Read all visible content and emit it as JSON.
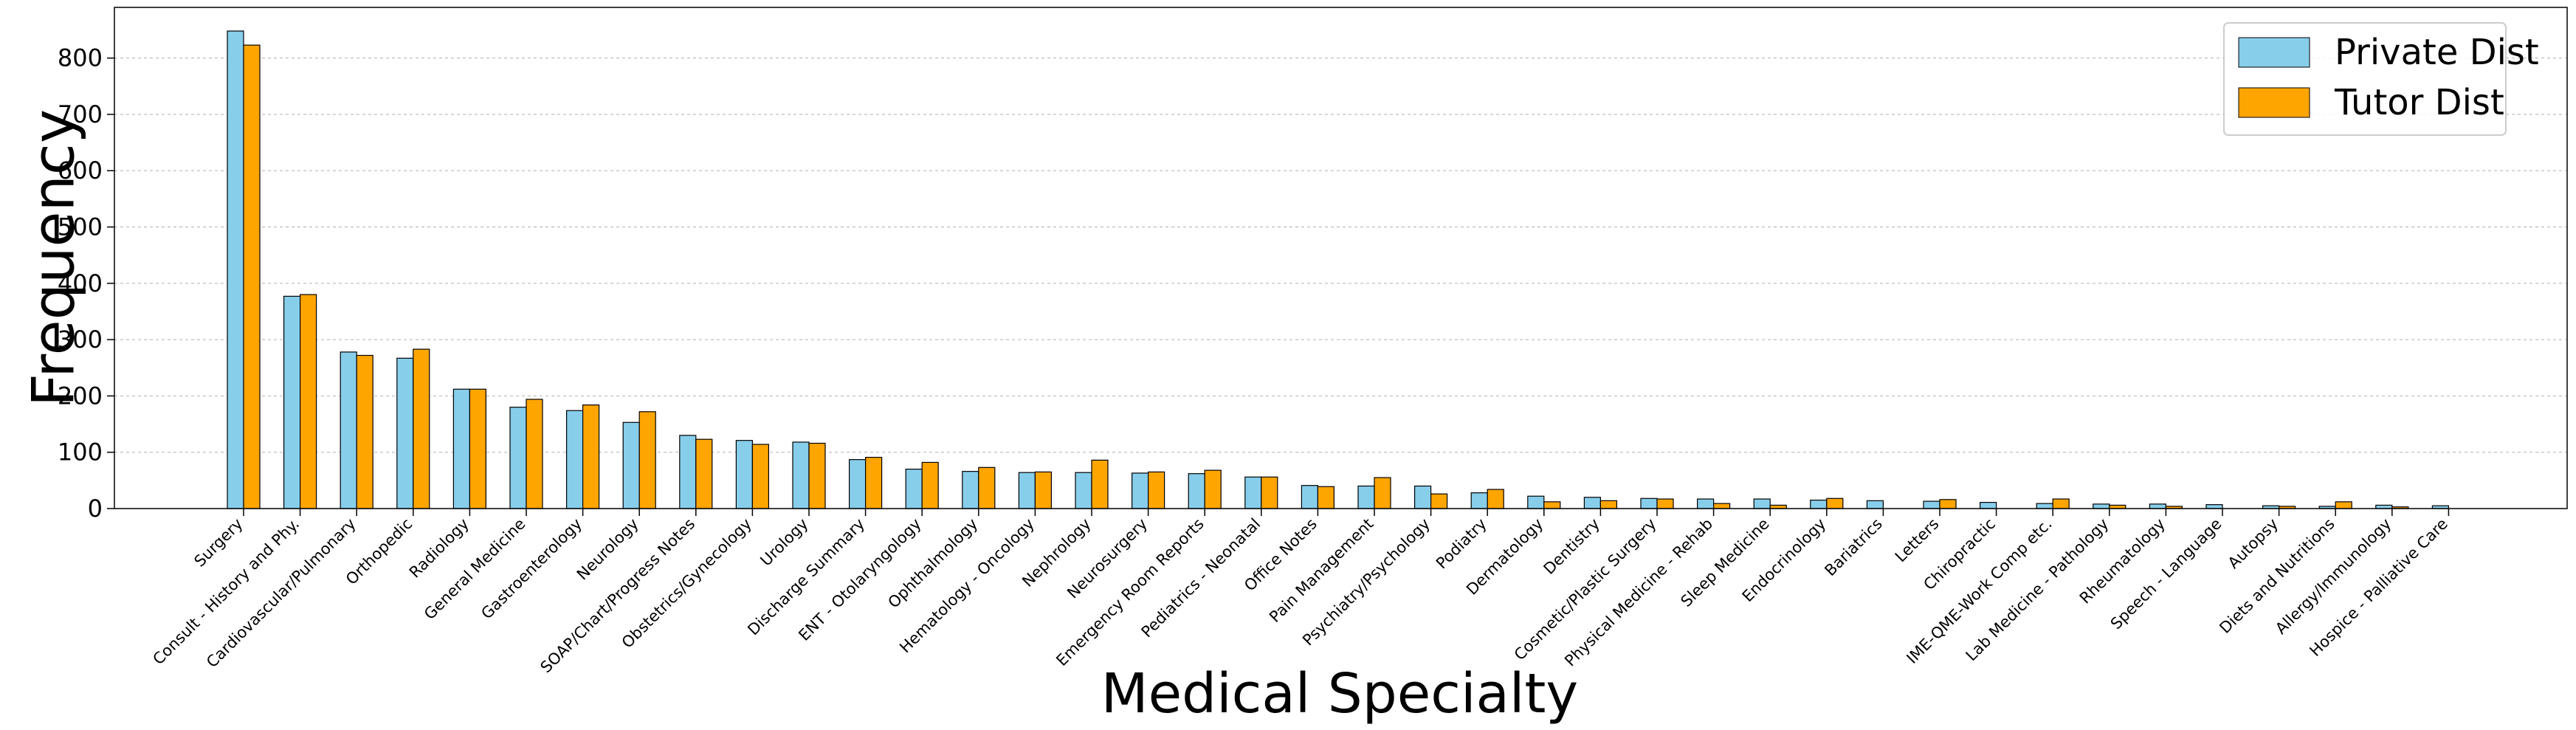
{
  "chart_data": {
    "type": "bar",
    "xlabel": "Medical Specialty",
    "ylabel": "Frequency",
    "ylim": [
      0,
      890
    ],
    "yticks": [
      0,
      100,
      200,
      300,
      400,
      500,
      600,
      700,
      800
    ],
    "grid": "horizontal dashed",
    "legend_position": "top-right",
    "categories": [
      "Surgery",
      "Consult - History and Phy.",
      "Cardiovascular/Pulmonary",
      "Orthopedic",
      "Radiology",
      "General Medicine",
      "Gastroenterology",
      "Neurology",
      "SOAP/Chart/Progress Notes",
      "Obstetrics/Gynecology",
      "Urology",
      "Discharge Summary",
      "ENT - Otolaryngology",
      "Ophthalmology",
      "Hematology - Oncology",
      "Nephrology",
      "Neurosurgery",
      "Emergency Room Reports",
      "Pediatrics - Neonatal",
      "Office Notes",
      "Pain Management",
      "Psychiatry/Psychology",
      "Podiatry",
      "Dermatology",
      "Dentistry",
      "Cosmetic/Plastic Surgery",
      "Physical Medicine - Rehab",
      "Sleep Medicine",
      "Endocrinology",
      "Bariatrics",
      "Letters",
      "Chiropractic",
      "IME-QME-Work Comp etc.",
      "Lab Medicine - Pathology",
      "Rheumatology",
      "Speech - Language",
      "Autopsy",
      "Diets and Nutritions",
      "Allergy/Immunology",
      "Hospice - Palliative Care"
    ],
    "series": [
      {
        "name": "Private Dist",
        "color": "#87CEEB",
        "values": [
          848,
          377,
          278,
          267,
          212,
          180,
          174,
          153,
          130,
          121,
          118,
          87,
          70,
          66,
          64,
          64,
          63,
          62,
          56,
          41,
          40,
          40,
          28,
          22,
          20,
          18,
          17,
          17,
          15,
          14,
          13,
          11,
          9,
          8,
          8,
          7,
          5,
          4,
          6,
          5
        ]
      },
      {
        "name": "Tutor Dist",
        "color": "#FFA500",
        "values": [
          823,
          380,
          272,
          283,
          212,
          194,
          184,
          172,
          123,
          114,
          116,
          91,
          82,
          73,
          65,
          86,
          65,
          68,
          56,
          39,
          55,
          26,
          34,
          12,
          14,
          17,
          9,
          6,
          18,
          0,
          16,
          0,
          17,
          6,
          4,
          0,
          4,
          12,
          3,
          0
        ]
      }
    ]
  }
}
